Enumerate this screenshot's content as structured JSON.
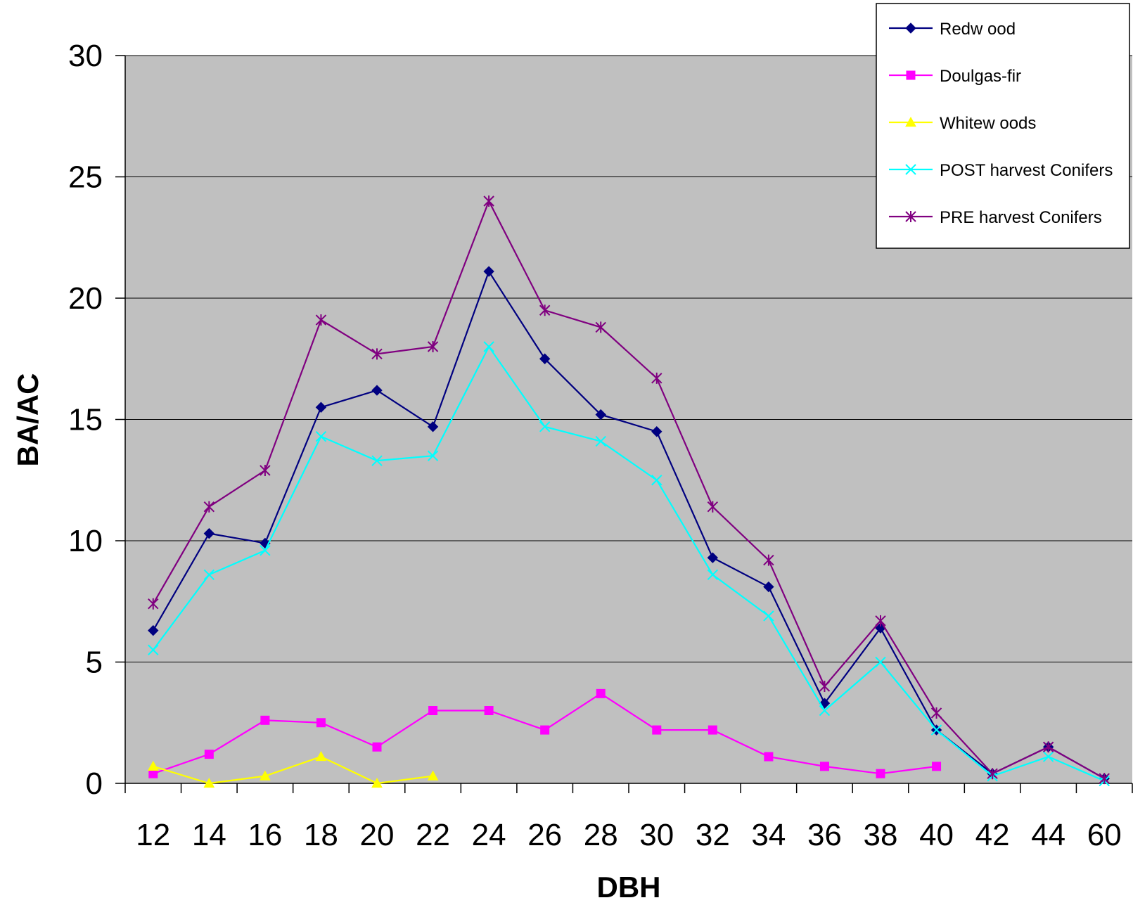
{
  "chart_data": {
    "type": "line",
    "xlabel": "DBH",
    "ylabel": "BA/AC",
    "ylim": [
      0,
      30
    ],
    "yticks": [
      "0",
      "5",
      "10",
      "15",
      "20",
      "25",
      "30"
    ],
    "categories": [
      "12",
      "14",
      "16",
      "18",
      "20",
      "22",
      "24",
      "26",
      "28",
      "30",
      "32",
      "34",
      "36",
      "38",
      "40",
      "42",
      "44",
      "60"
    ],
    "grid": true,
    "plot_background": "#C0C0C0",
    "legend_position": "top-right",
    "series": [
      {
        "name": "Redw ood",
        "color": "#000080",
        "marker": "diamond",
        "values": [
          6.3,
          10.3,
          9.9,
          15.5,
          16.2,
          14.7,
          21.1,
          17.5,
          15.2,
          14.5,
          9.3,
          8.1,
          3.3,
          6.4,
          2.2,
          0.4,
          1.5,
          0.2
        ]
      },
      {
        "name": "Doulgas-fir",
        "color": "#FF00FF",
        "marker": "square",
        "values": [
          0.4,
          1.2,
          2.6,
          2.5,
          1.5,
          3.0,
          3.0,
          2.2,
          3.7,
          2.2,
          2.2,
          1.1,
          0.7,
          0.4,
          0.7,
          null,
          null,
          null
        ]
      },
      {
        "name": "Whitew oods",
        "color": "#FFFF00",
        "marker": "triangle",
        "values": [
          0.7,
          0.0,
          0.3,
          1.1,
          0.0,
          0.3,
          null,
          null,
          null,
          null,
          null,
          null,
          null,
          null,
          null,
          null,
          null,
          null
        ]
      },
      {
        "name": "POST harvest Conifers",
        "color": "#00FFFF",
        "marker": "x",
        "values": [
          5.5,
          8.6,
          9.6,
          14.3,
          13.3,
          13.5,
          18.0,
          14.7,
          14.1,
          12.5,
          8.6,
          6.9,
          3.0,
          5.0,
          2.2,
          0.3,
          1.1,
          0.1
        ]
      },
      {
        "name": "PRE harvest Conifers",
        "color": "#800080",
        "marker": "star",
        "values": [
          7.4,
          11.4,
          12.9,
          19.1,
          17.7,
          18.0,
          24.0,
          19.5,
          18.8,
          16.7,
          11.4,
          9.2,
          4.0,
          6.7,
          2.9,
          0.4,
          1.5,
          0.2
        ]
      }
    ]
  }
}
